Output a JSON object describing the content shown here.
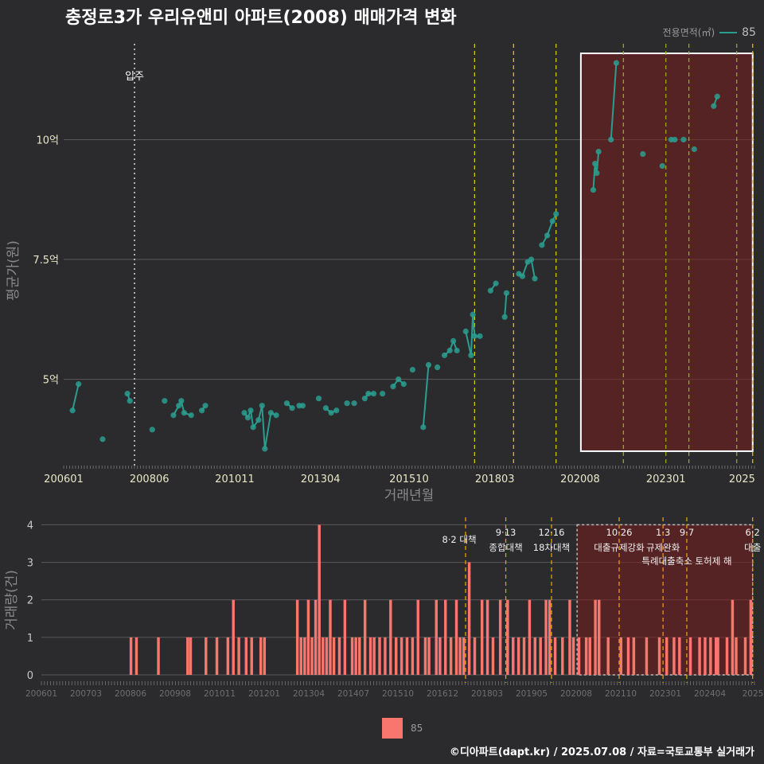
{
  "title": "충정로3가 우리유앤미 아파트(2008) 매매가격 변화",
  "legend_top": {
    "label": "전용면적(㎡)",
    "value": "85",
    "color": "#2a9d8f"
  },
  "legend_bottom": {
    "value": "85",
    "color": "#f8766d"
  },
  "footer": "©디아파트(dapt.kr) / 2025.07.08 / 자료=국토교통부 실거래가",
  "chart_data": [
    {
      "type": "scatter",
      "title": "충정로3가 우리유앤미 아파트(2008) 매매가격 변화",
      "xlabel": "거래년월",
      "ylabel": "평균가(원)",
      "xlim": [
        2006.0,
        2025.5
      ],
      "ylim": [
        3.2,
        12.0
      ],
      "x_ticks": [
        "200601",
        "200806",
        "201011",
        "201304",
        "201510",
        "201803",
        "202008",
        "202301",
        "2025"
      ],
      "y_ticks": [
        {
          "value": 5,
          "label": "5억"
        },
        {
          "value": 7.5,
          "label": "7.5억"
        },
        {
          "value": 10,
          "label": "10억"
        }
      ],
      "annotation": {
        "x": 2008.0,
        "label": "입주"
      },
      "policy_lines": [
        2017.6,
        2018.7,
        2019.9,
        2021.8,
        2023.0,
        2023.65,
        2025.0,
        2025.45
      ],
      "highlight_range": {
        "x": [
          2020.6,
          2025.45
        ],
        "y": [
          3.5,
          11.8
        ]
      },
      "series": [
        {
          "name": "85",
          "color": "#2a9d8f",
          "points": [
            [
              2006.25,
              4.35
            ],
            [
              2006.42,
              4.9
            ],
            [
              2007.1,
              3.75
            ],
            [
              2007.8,
              4.7
            ],
            [
              2007.87,
              4.55
            ],
            [
              2008.5,
              3.95
            ],
            [
              2008.85,
              4.55
            ],
            [
              2009.1,
              4.25
            ],
            [
              2009.25,
              4.45
            ],
            [
              2009.32,
              4.55
            ],
            [
              2009.4,
              4.3
            ],
            [
              2009.6,
              4.25
            ],
            [
              2009.9,
              4.35
            ],
            [
              2010.0,
              4.45
            ],
            [
              2011.1,
              4.3
            ],
            [
              2011.2,
              4.2
            ],
            [
              2011.28,
              4.35
            ],
            [
              2011.35,
              4.0
            ],
            [
              2011.5,
              4.15
            ],
            [
              2011.6,
              4.45
            ],
            [
              2011.68,
              3.55
            ],
            [
              2011.85,
              4.3
            ],
            [
              2012.0,
              4.25
            ],
            [
              2012.3,
              4.5
            ],
            [
              2012.45,
              4.4
            ],
            [
              2012.65,
              4.45
            ],
            [
              2012.75,
              4.45
            ],
            [
              2013.2,
              4.6
            ],
            [
              2013.4,
              4.4
            ],
            [
              2013.55,
              4.3
            ],
            [
              2013.7,
              4.35
            ],
            [
              2014.0,
              4.5
            ],
            [
              2014.2,
              4.5
            ],
            [
              2014.5,
              4.6
            ],
            [
              2014.6,
              4.7
            ],
            [
              2014.75,
              4.7
            ],
            [
              2015.0,
              4.7
            ],
            [
              2015.3,
              4.85
            ],
            [
              2015.45,
              5.0
            ],
            [
              2015.6,
              4.9
            ],
            [
              2015.85,
              5.2
            ],
            [
              2016.15,
              4.0
            ],
            [
              2016.3,
              5.3
            ],
            [
              2016.55,
              5.25
            ],
            [
              2016.75,
              5.5
            ],
            [
              2016.9,
              5.6
            ],
            [
              2017.0,
              5.8
            ],
            [
              2017.1,
              5.6
            ],
            [
              2017.35,
              6.0
            ],
            [
              2017.5,
              5.5
            ],
            [
              2017.55,
              6.35
            ],
            [
              2017.6,
              5.9
            ],
            [
              2017.75,
              5.9
            ],
            [
              2018.05,
              6.85
            ],
            [
              2018.2,
              7.0
            ],
            [
              2018.45,
              6.3
            ],
            [
              2018.5,
              6.8
            ],
            [
              2018.85,
              7.2
            ],
            [
              2018.95,
              7.15
            ],
            [
              2019.1,
              7.45
            ],
            [
              2019.2,
              7.5
            ],
            [
              2019.3,
              7.1
            ],
            [
              2019.5,
              7.8
            ],
            [
              2019.65,
              8.0
            ],
            [
              2019.8,
              8.3
            ],
            [
              2019.9,
              8.45
            ],
            [
              2020.95,
              8.95
            ],
            [
              2021.0,
              9.5
            ],
            [
              2021.05,
              9.3
            ],
            [
              2021.1,
              9.75
            ],
            [
              2021.45,
              10.0
            ],
            [
              2021.6,
              11.6
            ],
            [
              2022.35,
              9.7
            ],
            [
              2022.9,
              9.45
            ],
            [
              2023.15,
              10.0
            ],
            [
              2023.25,
              10.0
            ],
            [
              2023.5,
              10.0
            ],
            [
              2023.8,
              9.8
            ],
            [
              2024.35,
              10.7
            ],
            [
              2024.45,
              10.9
            ]
          ]
        }
      ]
    },
    {
      "type": "bar",
      "xlabel": "",
      "ylabel": "거래량(건)",
      "xlim": [
        2006.0,
        2025.5
      ],
      "ylim": [
        0,
        4.2
      ],
      "x_ticks": [
        "200601",
        "200703",
        "200806",
        "200908",
        "201011",
        "201201",
        "201304",
        "201407",
        "201510",
        "201612",
        "201803",
        "201905",
        "202008",
        "202110",
        "202301",
        "202404",
        "2025"
      ],
      "y_ticks": [
        0,
        1,
        2,
        3,
        4
      ],
      "highlight_range": {
        "x": [
          2020.65,
          2025.45
        ],
        "y": [
          0,
          4.0
        ]
      },
      "policies": [
        {
          "x": 2017.6,
          "label": "8·2 대책",
          "level": 1
        },
        {
          "x": 2018.7,
          "label_top": "9·13",
          "label": "종합대책",
          "level": 2
        },
        {
          "x": 2019.95,
          "label_top": "12·16",
          "label": "18차대책",
          "level": 2
        },
        {
          "x": 2021.8,
          "label_top": "10·26",
          "label": "대출규제강화",
          "level": 2
        },
        {
          "x": 2023.0,
          "label_top": "1·3",
          "label": "규제완화",
          "level": 2
        },
        {
          "x": 2023.65,
          "label_top": "9·7",
          "label": "특례대출축소 토허제 해",
          "level": 3
        },
        {
          "x": 2025.45,
          "label_top": "6·2",
          "label": "대출",
          "level": 2
        }
      ],
      "series": [
        {
          "name": "85",
          "color": "#f8766d",
          "bars": [
            [
              2008.45,
              1
            ],
            [
              2008.6,
              1
            ],
            [
              2009.2,
              1
            ],
            [
              2010.0,
              1
            ],
            [
              2010.08,
              1
            ],
            [
              2010.5,
              1
            ],
            [
              2010.8,
              1
            ],
            [
              2011.1,
              1
            ],
            [
              2011.25,
              2
            ],
            [
              2011.4,
              1
            ],
            [
              2011.6,
              1
            ],
            [
              2011.75,
              1
            ],
            [
              2012.0,
              1
            ],
            [
              2012.1,
              1
            ],
            [
              2013.0,
              2
            ],
            [
              2013.1,
              1
            ],
            [
              2013.2,
              1
            ],
            [
              2013.3,
              2
            ],
            [
              2013.4,
              1
            ],
            [
              2013.5,
              2
            ],
            [
              2013.6,
              4
            ],
            [
              2013.7,
              1
            ],
            [
              2013.8,
              1
            ],
            [
              2013.9,
              2
            ],
            [
              2014.0,
              1
            ],
            [
              2014.15,
              1
            ],
            [
              2014.3,
              2
            ],
            [
              2014.5,
              1
            ],
            [
              2014.6,
              1
            ],
            [
              2014.7,
              1
            ],
            [
              2014.85,
              2
            ],
            [
              2015.0,
              1
            ],
            [
              2015.1,
              1
            ],
            [
              2015.25,
              1
            ],
            [
              2015.4,
              1
            ],
            [
              2015.55,
              2
            ],
            [
              2015.7,
              1
            ],
            [
              2015.85,
              1
            ],
            [
              2016.0,
              1
            ],
            [
              2016.15,
              1
            ],
            [
              2016.3,
              2
            ],
            [
              2016.5,
              1
            ],
            [
              2016.6,
              1
            ],
            [
              2016.8,
              2
            ],
            [
              2016.9,
              1
            ],
            [
              2017.05,
              2
            ],
            [
              2017.2,
              1
            ],
            [
              2017.35,
              2
            ],
            [
              2017.45,
              1
            ],
            [
              2017.55,
              1
            ],
            [
              2017.7,
              3
            ],
            [
              2017.85,
              1
            ],
            [
              2018.05,
              2
            ],
            [
              2018.2,
              2
            ],
            [
              2018.35,
              1
            ],
            [
              2018.55,
              2
            ],
            [
              2018.75,
              2
            ],
            [
              2018.9,
              1
            ],
            [
              2019.05,
              1
            ],
            [
              2019.2,
              1
            ],
            [
              2019.35,
              2
            ],
            [
              2019.5,
              1
            ],
            [
              2019.65,
              1
            ],
            [
              2019.8,
              2
            ],
            [
              2019.9,
              2
            ],
            [
              2020.05,
              1
            ],
            [
              2020.25,
              1
            ],
            [
              2020.45,
              2
            ],
            [
              2020.55,
              1
            ],
            [
              2020.7,
              1
            ],
            [
              2020.9,
              1
            ],
            [
              2021.0,
              1
            ],
            [
              2021.15,
              2
            ],
            [
              2021.25,
              2
            ],
            [
              2021.5,
              1
            ],
            [
              2021.85,
              1
            ],
            [
              2022.05,
              1
            ],
            [
              2022.2,
              1
            ],
            [
              2022.55,
              1
            ],
            [
              2022.9,
              1
            ],
            [
              2023.1,
              1
            ],
            [
              2023.3,
              1
            ],
            [
              2023.45,
              1
            ],
            [
              2023.75,
              1
            ],
            [
              2024.0,
              1
            ],
            [
              2024.15,
              1
            ],
            [
              2024.3,
              1
            ],
            [
              2024.45,
              1
            ],
            [
              2024.5,
              1
            ],
            [
              2024.75,
              1
            ],
            [
              2024.9,
              2
            ],
            [
              2025.0,
              1
            ],
            [
              2025.25,
              1
            ],
            [
              2025.4,
              2
            ]
          ]
        }
      ]
    }
  ]
}
